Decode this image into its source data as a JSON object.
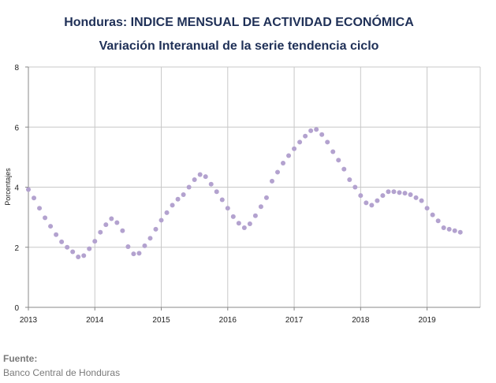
{
  "chart_data": {
    "type": "scatter",
    "title": "Honduras: INDICE MENSUAL DE ACTIVIDAD ECONÓMICA",
    "subtitle": "Variación Interanual de la serie tendencia ciclo",
    "xlabel": "",
    "ylabel": "Porcentajes",
    "ylim": [
      0,
      8
    ],
    "xlim": [
      2013,
      2019.8
    ],
    "yticks": [
      "0",
      "2",
      "4",
      "6",
      "8"
    ],
    "xticks": [
      "2013",
      "2014",
      "2015",
      "2016",
      "2017",
      "2018",
      "2019"
    ],
    "grid": true,
    "point_color": "#b3a2cf",
    "series": [
      {
        "x": [
          2013.0,
          2013.0833,
          2013.1667,
          2013.25,
          2013.3333,
          2013.4167,
          2013.5,
          2013.5833,
          2013.6667,
          2013.75,
          2013.8333,
          2013.9167,
          2014.0,
          2014.0833,
          2014.1667,
          2014.25,
          2014.3333,
          2014.4167,
          2014.5,
          2014.5833,
          2014.6667,
          2014.75,
          2014.8333,
          2014.9167,
          2015.0,
          2015.0833,
          2015.1667,
          2015.25,
          2015.3333,
          2015.4167,
          2015.5,
          2015.5833,
          2015.6667,
          2015.75,
          2015.8333,
          2015.9167,
          2016.0,
          2016.0833,
          2016.1667,
          2016.25,
          2016.3333,
          2016.4167,
          2016.5,
          2016.5833,
          2016.6667,
          2016.75,
          2016.8333,
          2016.9167,
          2017.0,
          2017.0833,
          2017.1667,
          2017.25,
          2017.3333,
          2017.4167,
          2017.5,
          2017.5833,
          2017.6667,
          2017.75,
          2017.8333,
          2017.9167,
          2018.0,
          2018.0833,
          2018.1667,
          2018.25,
          2018.3333,
          2018.4167,
          2018.5,
          2018.5833,
          2018.6667,
          2018.75,
          2018.8333,
          2018.9167,
          2019.0,
          2019.0833,
          2019.1667,
          2019.25,
          2019.3333,
          2019.4167,
          2019.5
        ],
        "y": [
          3.92,
          3.64,
          3.3,
          2.98,
          2.7,
          2.42,
          2.18,
          2.0,
          1.85,
          1.68,
          1.72,
          1.95,
          2.2,
          2.5,
          2.75,
          2.95,
          2.82,
          2.55,
          2.02,
          1.78,
          1.8,
          2.05,
          2.3,
          2.6,
          2.9,
          3.15,
          3.4,
          3.6,
          3.75,
          4.0,
          4.25,
          4.42,
          4.35,
          4.1,
          3.85,
          3.58,
          3.3,
          3.02,
          2.8,
          2.65,
          2.78,
          3.05,
          3.35,
          3.65,
          4.2,
          4.5,
          4.8,
          5.05,
          5.28,
          5.5,
          5.7,
          5.88,
          5.92,
          5.75,
          5.5,
          5.18,
          4.9,
          4.6,
          4.25,
          4.0,
          3.72,
          3.48,
          3.4,
          3.55,
          3.72,
          3.85,
          3.85,
          3.82,
          3.8,
          3.75,
          3.65,
          3.55,
          3.3,
          3.08,
          2.88,
          2.65,
          2.6,
          2.55,
          2.5
        ]
      }
    ]
  },
  "source": {
    "label": "Fuente:",
    "text": "Banco Central de Honduras"
  }
}
